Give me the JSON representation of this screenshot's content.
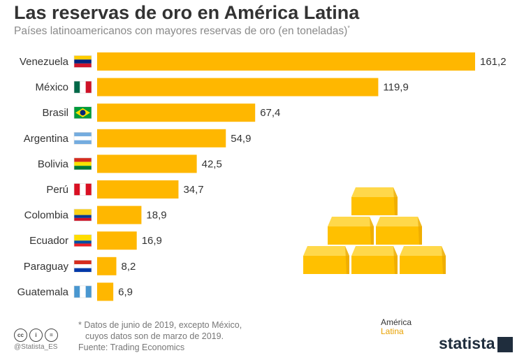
{
  "header": {
    "title": "Las reservas de oro en América Latina",
    "subtitle": "Países latinoamericanos con mayores reservas de oro (en toneladas)",
    "subtitle_mark": "*"
  },
  "chart_data": {
    "type": "bar",
    "orientation": "horizontal",
    "title": "Las reservas de oro en América Latina",
    "xlabel": "",
    "ylabel": "",
    "unit": "toneladas",
    "categories": [
      "Venezuela",
      "México",
      "Brasil",
      "Argentina",
      "Bolivia",
      "Perú",
      "Colombia",
      "Ecuador",
      "Paraguay",
      "Guatemala"
    ],
    "values": [
      161.2,
      119.9,
      67.4,
      54.9,
      42.5,
      34.7,
      18.9,
      16.9,
      8.2,
      6.9
    ],
    "value_labels": [
      "161,2",
      "119,9",
      "67,4",
      "54,9",
      "42,5",
      "34,7",
      "18,9",
      "16,9",
      "8,2",
      "6,9"
    ],
    "xlim": [
      0,
      161.2
    ],
    "bar_color": "#ffb700",
    "grid": false
  },
  "footer": {
    "note_line1": "* Datos de junio de 2019, excepto México,",
    "note_line2": "cuyos datos son de marzo de 2019.",
    "source": "Fuente: Trading Economics"
  },
  "branding": {
    "cc_handle": "@Statista_ES",
    "partner_word1": "América",
    "partner_word2": "Latina",
    "logo": "statista"
  },
  "colors": {
    "bar": "#ffb700",
    "gold_face": "#ffc000",
    "gold_light": "#ffd84a",
    "gold_dark": "#e6a200"
  }
}
